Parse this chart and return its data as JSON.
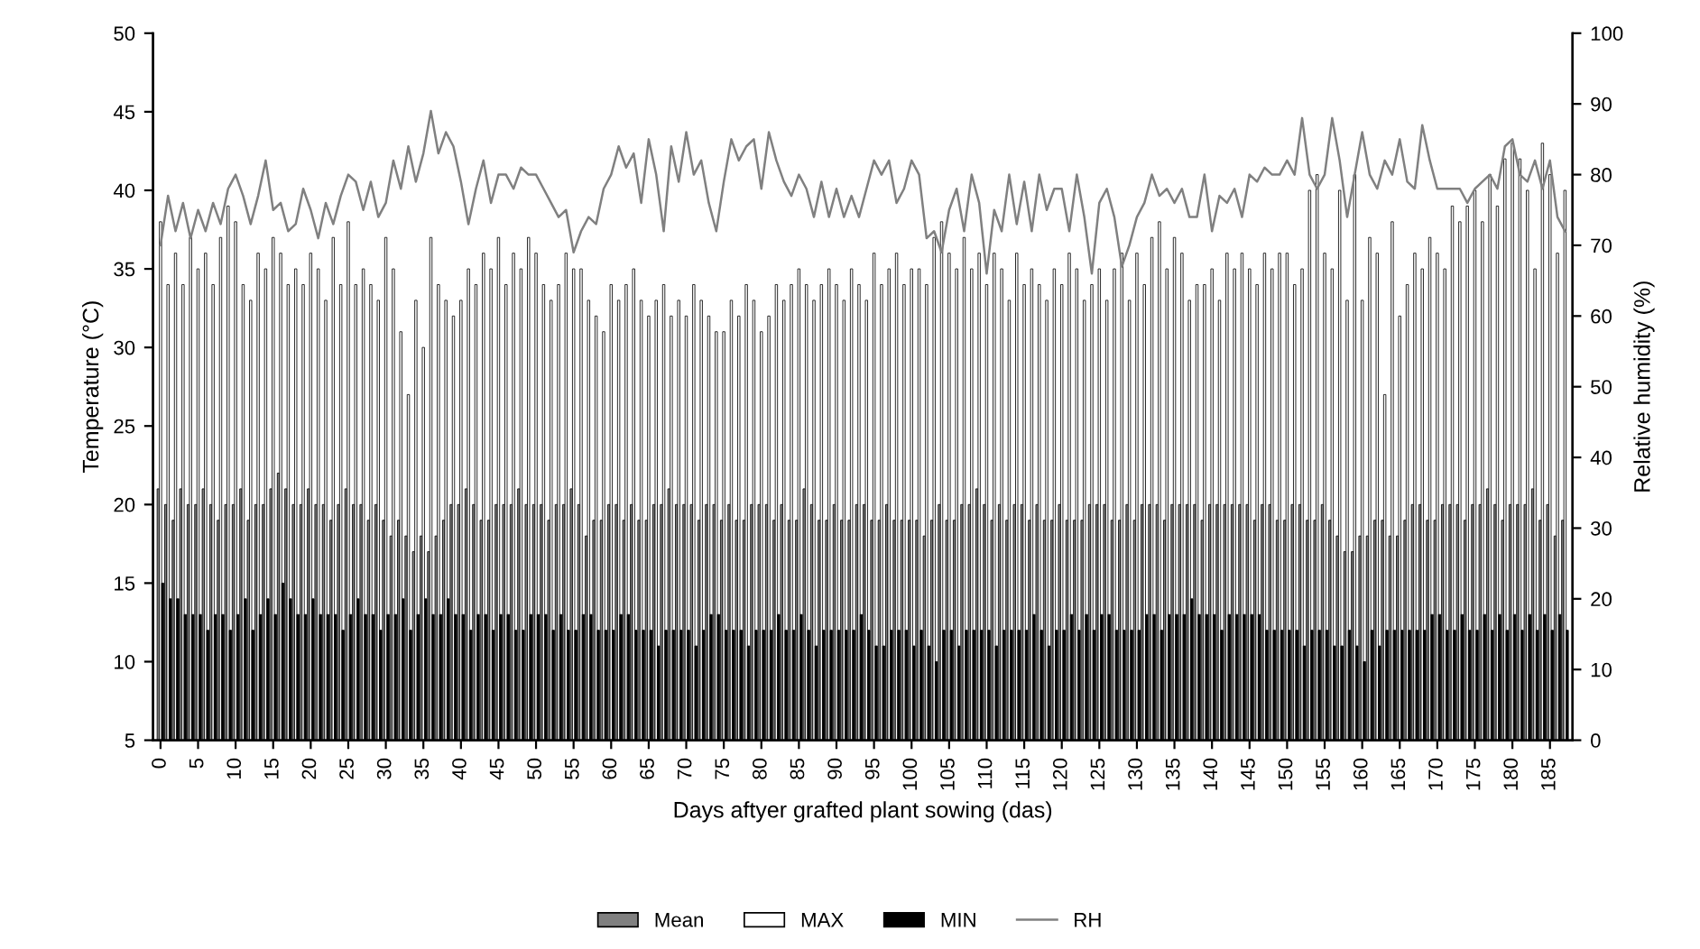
{
  "chart_data": {
    "type": "bar",
    "xlabel": "Days aftyer grafted plant sowing (das)",
    "ylabel": "Temperature (°C)",
    "y2label": "Relative humidity (%)",
    "x": [
      0,
      1,
      2,
      3,
      4,
      5,
      6,
      7,
      8,
      9,
      10,
      11,
      12,
      13,
      14,
      15,
      16,
      17,
      18,
      19,
      20,
      21,
      22,
      23,
      24,
      25,
      26,
      27,
      28,
      29,
      30,
      31,
      32,
      33,
      34,
      35,
      36,
      37,
      38,
      39,
      40,
      41,
      42,
      43,
      44,
      45,
      46,
      47,
      48,
      49,
      50,
      51,
      52,
      53,
      54,
      55,
      56,
      57,
      58,
      59,
      60,
      61,
      62,
      63,
      64,
      65,
      66,
      67,
      68,
      69,
      70,
      71,
      72,
      73,
      74,
      75,
      76,
      77,
      78,
      79,
      80,
      81,
      82,
      83,
      84,
      85,
      86,
      87,
      88,
      89,
      90,
      91,
      92,
      93,
      94,
      95,
      96,
      97,
      98,
      99,
      100,
      101,
      102,
      103,
      104,
      105,
      106,
      107,
      108,
      109,
      110,
      111,
      112,
      113,
      114,
      115,
      116,
      117,
      118,
      119,
      120,
      121,
      122,
      123,
      124,
      125,
      126,
      127,
      128,
      129,
      130,
      131,
      132,
      133,
      134,
      135,
      136,
      137,
      138,
      139,
      140,
      141,
      142,
      143,
      144,
      145,
      146,
      147,
      148,
      149,
      150,
      151,
      152,
      153,
      154,
      155,
      156,
      157,
      158,
      159,
      160,
      161,
      162,
      163,
      164,
      165,
      166,
      167,
      168,
      169,
      170,
      171,
      172,
      173,
      174,
      175,
      176,
      177,
      178,
      179,
      180,
      181,
      182,
      183,
      184,
      185,
      186,
      187
    ],
    "series": [
      {
        "name": "Mean",
        "color": "#808080",
        "values": [
          21,
          20,
          19,
          21,
          20,
          20,
          21,
          20,
          19,
          20,
          20,
          21,
          19,
          20,
          20,
          21,
          22,
          21,
          20,
          20,
          21,
          20,
          20,
          19,
          20,
          21,
          20,
          20,
          19,
          20,
          19,
          18,
          19,
          18,
          17,
          18,
          17,
          18,
          19,
          20,
          20,
          21,
          20,
          19,
          19,
          20,
          20,
          20,
          21,
          20,
          20,
          20,
          19,
          20,
          20,
          21,
          20,
          18,
          19,
          19,
          20,
          20,
          19,
          20,
          19,
          19,
          20,
          20,
          21,
          20,
          20,
          20,
          19,
          20,
          20,
          19,
          20,
          19,
          19,
          20,
          20,
          20,
          19,
          20,
          19,
          19,
          21,
          20,
          19,
          19,
          20,
          19,
          19,
          20,
          20,
          19,
          19,
          20,
          19,
          19,
          19,
          19,
          18,
          19,
          20,
          19,
          19,
          20,
          20,
          21,
          20,
          19,
          20,
          19,
          20,
          20,
          19,
          20,
          19,
          19,
          20,
          19,
          19,
          19,
          20,
          20,
          20,
          19,
          19,
          20,
          19,
          20,
          20,
          20,
          19,
          20,
          20,
          20,
          20,
          19,
          20,
          20,
          20,
          20,
          20,
          20,
          19,
          20,
          20,
          19,
          19,
          20,
          20,
          19,
          19,
          20,
          19,
          18,
          17,
          17,
          18,
          18,
          19,
          19,
          18,
          18,
          19,
          20,
          20,
          19,
          19,
          20,
          20,
          20,
          19,
          20,
          20,
          21,
          20,
          19,
          20,
          20,
          20,
          21,
          19,
          20,
          18,
          19
        ]
      },
      {
        "name": "MAX",
        "color": "#ffffff",
        "values": [
          38,
          34,
          36,
          34,
          37,
          35,
          36,
          34,
          37,
          39,
          38,
          34,
          33,
          36,
          35,
          37,
          36,
          34,
          35,
          34,
          36,
          35,
          33,
          37,
          34,
          38,
          34,
          35,
          34,
          33,
          37,
          35,
          31,
          27,
          33,
          30,
          37,
          34,
          33,
          32,
          33,
          35,
          34,
          36,
          35,
          37,
          34,
          36,
          35,
          37,
          36,
          34,
          33,
          34,
          36,
          35,
          35,
          33,
          32,
          31,
          34,
          33,
          34,
          35,
          33,
          32,
          33,
          34,
          32,
          33,
          32,
          34,
          33,
          32,
          31,
          31,
          33,
          32,
          34,
          33,
          31,
          32,
          34,
          33,
          34,
          35,
          34,
          33,
          34,
          35,
          34,
          33,
          35,
          34,
          33,
          36,
          34,
          35,
          36,
          34,
          35,
          35,
          34,
          37,
          38,
          36,
          35,
          37,
          35,
          36,
          34,
          36,
          35,
          33,
          36,
          34,
          35,
          34,
          33,
          35,
          34,
          36,
          35,
          33,
          34,
          35,
          33,
          35,
          36,
          33,
          36,
          34,
          37,
          38,
          35,
          37,
          36,
          33,
          34,
          34,
          35,
          33,
          36,
          35,
          36,
          35,
          34,
          36,
          35,
          36,
          36,
          34,
          35,
          40,
          41,
          36,
          35,
          40,
          33,
          41,
          33,
          37,
          36,
          27,
          38,
          32,
          34,
          36,
          35,
          37,
          36,
          35,
          39,
          38,
          39,
          40,
          38,
          41,
          39,
          42,
          43,
          42,
          40,
          35,
          43,
          41,
          36,
          40
        ]
      },
      {
        "name": "MIN",
        "color": "#000000",
        "values": [
          15,
          14,
          14,
          13,
          13,
          13,
          12,
          13,
          13,
          12,
          13,
          14,
          12,
          13,
          14,
          13,
          15,
          14,
          13,
          13,
          14,
          13,
          13,
          13,
          12,
          13,
          14,
          13,
          13,
          12,
          13,
          13,
          14,
          12,
          13,
          14,
          13,
          13,
          14,
          13,
          13,
          12,
          13,
          13,
          12,
          13,
          13,
          12,
          12,
          13,
          13,
          13,
          12,
          13,
          12,
          12,
          13,
          13,
          12,
          12,
          12,
          13,
          13,
          12,
          12,
          12,
          11,
          12,
          12,
          12,
          12,
          11,
          12,
          13,
          13,
          12,
          12,
          12,
          11,
          12,
          12,
          12,
          13,
          12,
          12,
          13,
          12,
          11,
          12,
          12,
          12,
          12,
          12,
          13,
          12,
          11,
          11,
          12,
          12,
          12,
          11,
          12,
          11,
          10,
          12,
          12,
          11,
          12,
          12,
          12,
          12,
          11,
          12,
          12,
          12,
          12,
          13,
          12,
          11,
          12,
          12,
          13,
          12,
          13,
          12,
          13,
          13,
          12,
          12,
          12,
          12,
          13,
          13,
          12,
          13,
          13,
          13,
          14,
          13,
          13,
          13,
          12,
          13,
          13,
          13,
          13,
          13,
          12,
          12,
          12,
          12,
          12,
          11,
          12,
          12,
          12,
          11,
          11,
          12,
          11,
          10,
          12,
          11,
          12,
          12,
          12,
          12,
          12,
          12,
          13,
          13,
          12,
          12,
          13,
          12,
          12,
          13,
          12,
          13,
          12,
          13,
          12,
          13,
          12,
          13,
          12,
          13,
          12
        ]
      },
      {
        "name": "RH",
        "type": "line",
        "axis": "y2",
        "color": "#808080",
        "values": [
          70,
          77,
          72,
          76,
          71,
          75,
          72,
          76,
          73,
          78,
          80,
          77,
          73,
          77,
          82,
          75,
          76,
          72,
          73,
          78,
          75,
          71,
          76,
          73,
          77,
          80,
          79,
          75,
          79,
          74,
          76,
          82,
          78,
          84,
          79,
          83,
          89,
          83,
          86,
          84,
          79,
          73,
          78,
          82,
          76,
          80,
          80,
          78,
          81,
          80,
          80,
          78,
          76,
          74,
          75,
          69,
          72,
          74,
          73,
          78,
          80,
          84,
          81,
          83,
          76,
          85,
          80,
          72,
          84,
          79,
          86,
          80,
          82,
          76,
          72,
          79,
          85,
          82,
          84,
          85,
          78,
          86,
          82,
          79,
          77,
          80,
          78,
          74,
          79,
          74,
          78,
          74,
          77,
          74,
          78,
          82,
          80,
          82,
          76,
          78,
          82,
          80,
          71,
          72,
          69,
          75,
          78,
          72,
          80,
          76,
          66,
          75,
          72,
          80,
          73,
          79,
          72,
          80,
          75,
          78,
          78,
          72,
          80,
          74,
          66,
          76,
          78,
          74,
          67,
          70,
          74,
          76,
          80,
          77,
          78,
          76,
          78,
          74,
          74,
          80,
          72,
          77,
          76,
          78,
          74,
          80,
          79,
          81,
          80,
          80,
          82,
          80,
          88,
          80,
          78,
          80,
          88,
          82,
          74,
          80,
          86,
          80,
          78,
          82,
          80,
          85,
          79,
          78,
          87,
          82,
          78,
          78,
          78,
          78,
          76,
          78,
          79,
          80,
          78,
          84,
          85,
          80,
          79,
          82,
          78,
          82,
          74,
          72
        ]
      }
    ],
    "xlim": [
      -1,
      188
    ],
    "xticks": [
      0,
      5,
      10,
      15,
      20,
      25,
      30,
      35,
      40,
      45,
      50,
      55,
      60,
      65,
      70,
      75,
      80,
      85,
      90,
      95,
      100,
      105,
      110,
      115,
      120,
      125,
      130,
      135,
      140,
      145,
      150,
      155,
      160,
      165,
      170,
      175,
      180,
      185
    ],
    "ylim": [
      5,
      50
    ],
    "yticks": [
      5,
      10,
      15,
      20,
      25,
      30,
      35,
      40,
      45,
      50
    ],
    "y2lim": [
      0,
      100
    ],
    "y2ticks": [
      0,
      10,
      20,
      30,
      40,
      50,
      60,
      70,
      80,
      90,
      100
    ],
    "legend": "bottom",
    "grid": false
  }
}
